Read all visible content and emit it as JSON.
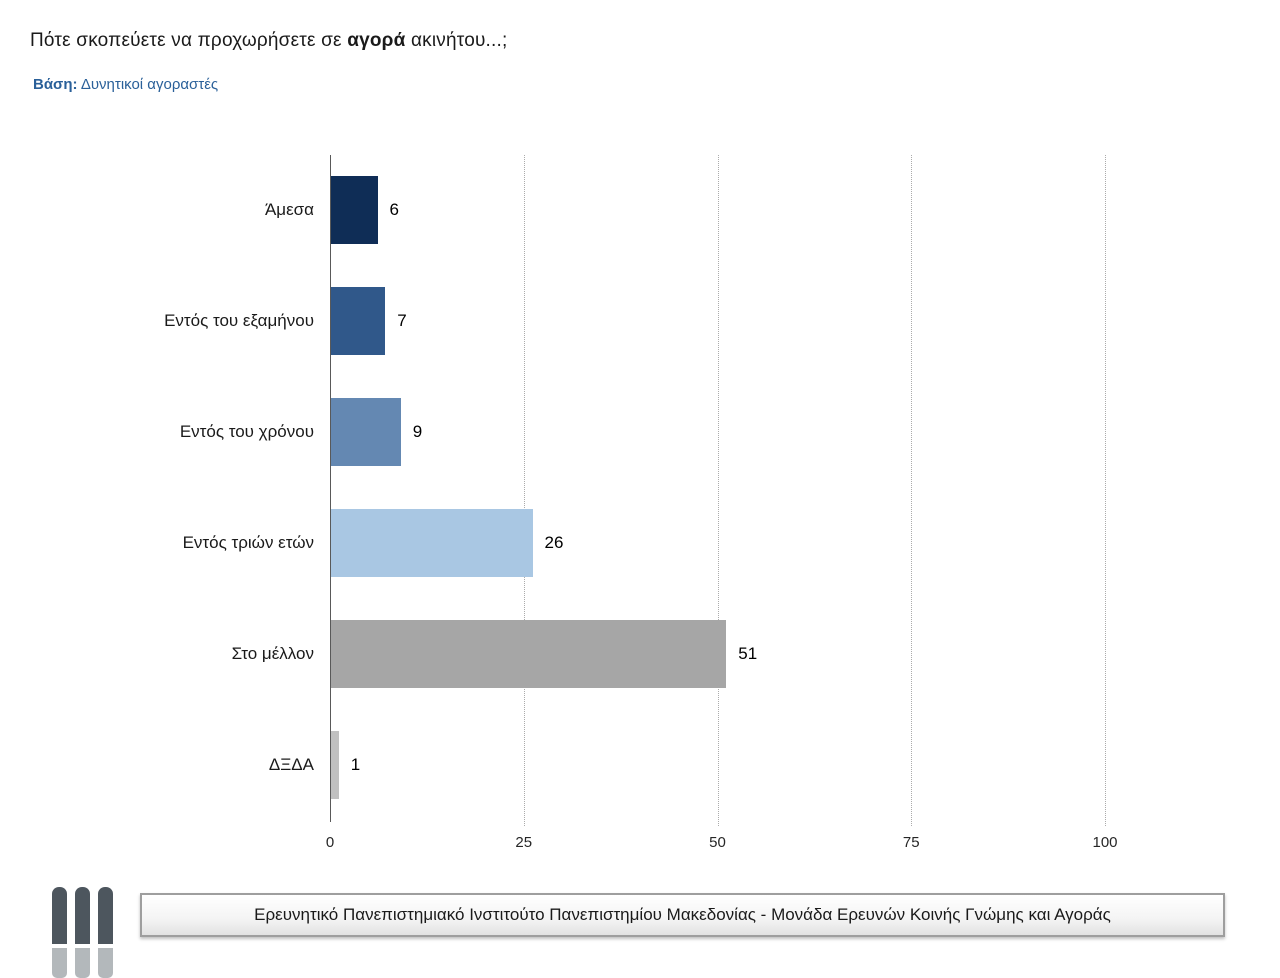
{
  "header": {
    "title_prefix": "Πότε σκοπεύετε να προχωρήσετε σε ",
    "title_bold": "αγορά",
    "title_suffix": " ακινήτου...;",
    "base_label": "Βάση:",
    "base_value": " Δυνητικοί αγοραστές"
  },
  "chart_data": {
    "type": "bar",
    "orientation": "horizontal",
    "title": "Πότε σκοπεύετε να προχωρήσετε σε αγορά ακινήτου...;",
    "subtitle": "Βάση: Δυνητικοί αγοραστές",
    "categories": [
      "Άμεσα",
      "Εντός του εξαμήνου",
      "Εντός του χρόνου",
      "Εντός τριών ετών",
      "Στο μέλλον",
      "ΔΞΔΑ"
    ],
    "values": [
      6,
      7,
      9,
      26,
      51,
      1
    ],
    "bar_colors": [
      "#0f2d56",
      "#30588a",
      "#6488b2",
      "#a9c7e3",
      "#a6a6a6",
      "#c0c0c0"
    ],
    "x_ticks": [
      0,
      25,
      50,
      75,
      100
    ],
    "xlim": [
      0,
      113
    ],
    "grid": "vertical-dotted",
    "value_labels": true,
    "legend": "none"
  },
  "footer": {
    "text": "Ερευνητικό Πανεπιστημιακό Ινστιτούτο Πανεπιστημίου Μακεδονίας - Μονάδα Ερευνών Κοινής Γνώμης και Αγοράς",
    "logo": "three-bars-logo"
  }
}
